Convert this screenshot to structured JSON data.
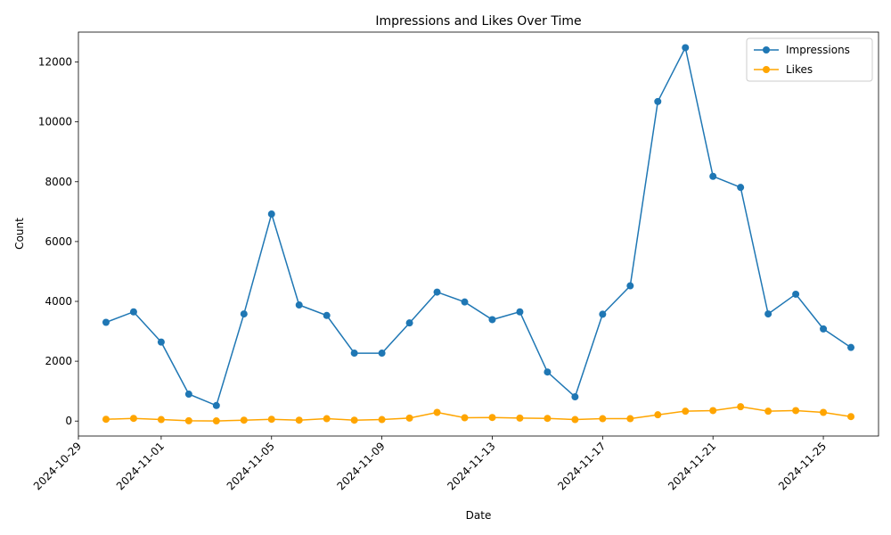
{
  "chart_data": {
    "type": "line",
    "title": "Impressions and Likes Over Time",
    "xlabel": "Date",
    "ylabel": "Count",
    "x": [
      "2024-10-30",
      "2024-10-31",
      "2024-11-01",
      "2024-11-02",
      "2024-11-03",
      "2024-11-04",
      "2024-11-05",
      "2024-11-06",
      "2024-11-07",
      "2024-11-08",
      "2024-11-09",
      "2024-11-10",
      "2024-11-11",
      "2024-11-12",
      "2024-11-13",
      "2024-11-14",
      "2024-11-15",
      "2024-11-16",
      "2024-11-17",
      "2024-11-18",
      "2024-11-19",
      "2024-11-20",
      "2024-11-21",
      "2024-11-22",
      "2024-11-23",
      "2024-11-24",
      "2024-11-25",
      "2024-11-26"
    ],
    "xlim": [
      "2024-10-29",
      "2024-11-27"
    ],
    "x_ticks": [
      "2024-10-29",
      "2024-11-01",
      "2024-11-05",
      "2024-11-09",
      "2024-11-13",
      "2024-11-17",
      "2024-11-21",
      "2024-11-25"
    ],
    "ylim": [
      -500,
      13000
    ],
    "y_ticks": [
      0,
      2000,
      4000,
      6000,
      8000,
      10000,
      12000
    ],
    "grid": false,
    "legend_position": "top-right",
    "series": [
      {
        "name": "Impressions",
        "color": "#1f77b4",
        "values": [
          3300,
          3650,
          2640,
          900,
          520,
          3580,
          6920,
          3880,
          3530,
          2270,
          2270,
          3280,
          4310,
          3980,
          3390,
          3650,
          1640,
          810,
          3570,
          4520,
          10680,
          12480,
          8180,
          7810,
          3580,
          4240,
          3080,
          2460
        ]
      },
      {
        "name": "Likes",
        "color": "#ffa500",
        "values": [
          60,
          90,
          50,
          10,
          5,
          30,
          60,
          30,
          80,
          30,
          50,
          100,
          290,
          110,
          120,
          100,
          90,
          50,
          80,
          80,
          210,
          330,
          350,
          480,
          330,
          350,
          290,
          150
        ]
      }
    ]
  }
}
